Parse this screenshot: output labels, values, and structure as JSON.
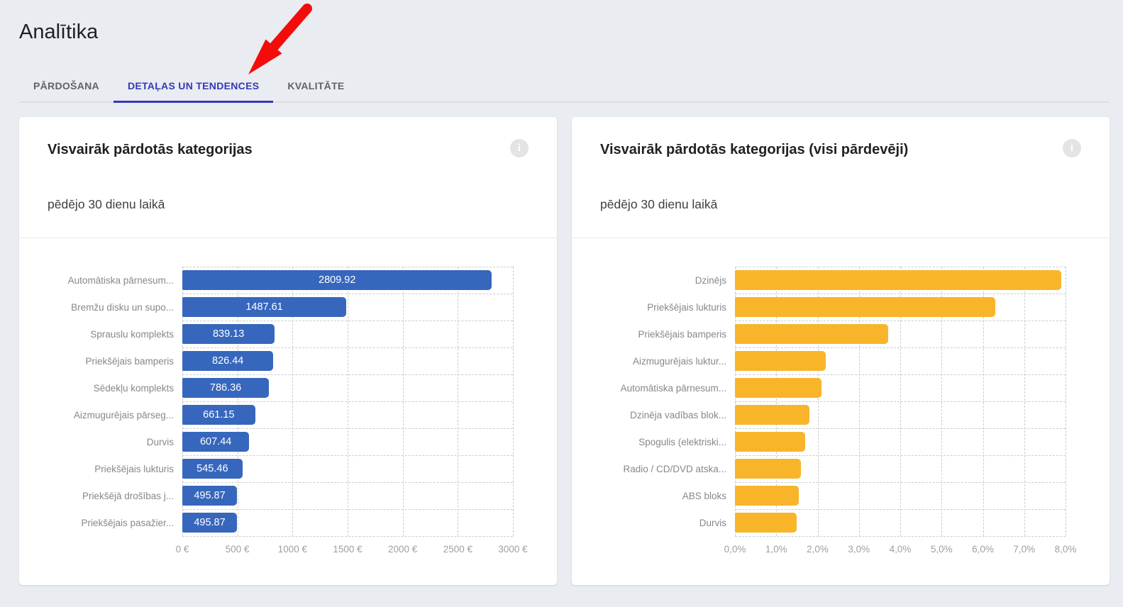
{
  "page": {
    "title": "Analītika"
  },
  "tabs": {
    "items": [
      {
        "label": "PĀRDOŠANA",
        "active": false
      },
      {
        "label": "DETAĻAS UN TENDENCES",
        "active": true
      },
      {
        "label": "KVALITĀTE",
        "active": false
      }
    ]
  },
  "icons": {
    "info_glyph": "i",
    "red_arrow": "arrow-pointing-to-active-tab"
  },
  "colors": {
    "page_background": "#E9ECF0",
    "active_tab": "#3538B8",
    "bar_blue": "#3667BD",
    "bar_yellow": "#F9B52A",
    "arrow_red": "#F40B0B"
  },
  "chart_data": [
    {
      "type": "bar",
      "orientation": "horizontal",
      "title": "Visvairāk pārdotās kategorijas",
      "subtitle": "pēdējo 30 dienu laikā",
      "unit": "EUR",
      "categories": [
        "Automātiska pārnesum...",
        "Bremžu disku un supo...",
        "Sprauslu komplekts",
        "Priekšējais bamperis",
        "Sēdekļu komplekts",
        "Aizmugurējais pārseg...",
        "Durvis",
        "Priekšējais lukturis",
        "Priekšējā drošības j...",
        "Priekšējais pasažier..."
      ],
      "values": [
        2809.92,
        1487.61,
        839.13,
        826.44,
        786.36,
        661.15,
        607.44,
        545.46,
        495.87,
        495.87
      ],
      "xlim": [
        0,
        3000
      ],
      "xticks": [
        "0 €",
        "500 €",
        "1000 €",
        "1500 €",
        "2000 €",
        "2500 €",
        "3000 €"
      ],
      "grid": true,
      "legend": false,
      "bar_color": "#3667BD",
      "show_value_labels": true
    },
    {
      "type": "bar",
      "orientation": "horizontal",
      "title": "Visvairāk pārdotās kategorijas (visi pārdevēji)",
      "subtitle": "pēdējo 30 dienu laikā",
      "unit": "%",
      "categories": [
        "Dzinējs",
        "Priekšējais lukturis",
        "Priekšējais bamperis",
        "Aizmugurējais luktur...",
        "Automātiska pārnesum...",
        "Dzinēja vadības blok...",
        "Spogulis (elektriski...",
        "Radio / CD/DVD atska...",
        "ABS bloks",
        "Durvis"
      ],
      "values": [
        7.9,
        6.3,
        3.7,
        2.2,
        2.1,
        1.8,
        1.7,
        1.6,
        1.55,
        1.5
      ],
      "xlim": [
        0,
        8
      ],
      "xticks": [
        "0,0%",
        "1,0%",
        "2,0%",
        "3,0%",
        "4,0%",
        "5,0%",
        "6,0%",
        "7,0%",
        "8,0%"
      ],
      "grid": true,
      "legend": false,
      "bar_color": "#F9B52A",
      "show_value_labels": false
    }
  ]
}
